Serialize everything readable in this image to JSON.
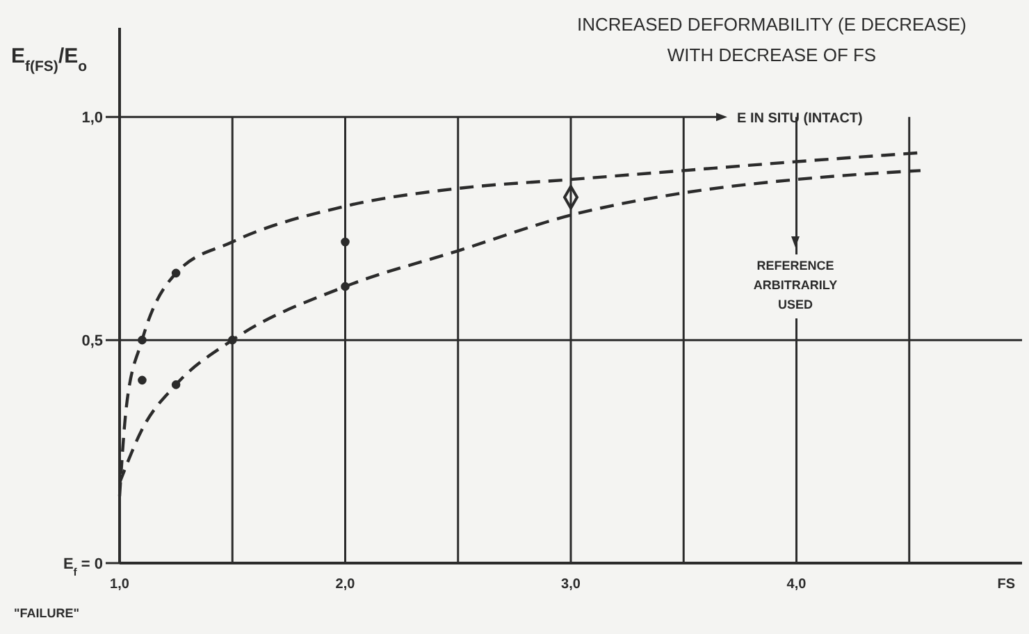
{
  "chart_data": {
    "type": "line",
    "title": "INCREASED DEFORMABILITY (E DECREASE)\nWITH DECREASE OF FS",
    "xlabel": "FS",
    "ylabel": "E$_{f(FS)}$/E$_{o}$",
    "xlim": [
      1.0,
      5.0
    ],
    "ylim": [
      0,
      1.2
    ],
    "xticks": [
      {
        "value": 1.0,
        "label": "1,0"
      },
      {
        "value": 1.5,
        "label": null
      },
      {
        "value": 2.0,
        "label": "2,0"
      },
      {
        "value": 2.5,
        "label": null
      },
      {
        "value": 3.0,
        "label": "3,0"
      },
      {
        "value": 3.5,
        "label": null
      },
      {
        "value": 4.0,
        "label": "4,0"
      },
      {
        "value": 4.5,
        "label": null
      }
    ],
    "yticks": [
      {
        "value": 0,
        "label": "E$_{f}$ = 0"
      },
      {
        "value": 0.5,
        "label": "0,5"
      },
      {
        "value": 1.0,
        "label": "1,0"
      }
    ],
    "grid": true,
    "line_style": "dashed",
    "marker": "none",
    "series": [
      {
        "color": "#2b2b2b",
        "x": [
          1.0,
          1.03,
          1.1,
          1.25,
          1.5,
          2.0,
          2.5,
          3.0,
          3.5,
          4.0,
          4.55
        ],
        "values": [
          0.15,
          0.35,
          0.5,
          0.65,
          0.72,
          0.8,
          0.84,
          0.86,
          0.88,
          0.9,
          0.92
        ]
      },
      {
        "color": "#2b2b2b",
        "x": [
          1.0,
          1.1,
          1.25,
          1.5,
          2.0,
          2.5,
          3.0,
          3.5,
          4.0,
          4.55
        ],
        "values": [
          0.18,
          0.3,
          0.4,
          0.5,
          0.62,
          0.7,
          0.78,
          0.83,
          0.86,
          0.88
        ]
      },
      {
        "type": "scatter",
        "marker": "circle",
        "color": "#2b2b2b",
        "x": [
          1.1,
          1.25,
          1.1,
          1.25,
          1.5,
          2.0,
          2.0
        ],
        "values": [
          0.5,
          0.65,
          0.41,
          0.4,
          0.5,
          0.72,
          0.62
        ]
      },
      {
        "type": "scatter",
        "marker": "diamond",
        "color": "#2b2b2b",
        "x": [
          3.0
        ],
        "values": [
          0.82
        ]
      }
    ],
    "ref_lines": [
      {
        "axis": "y",
        "value": 1.0,
        "label": "E IN SITU (INTACT)"
      }
    ],
    "annotations": [
      "\"FAILURE\"",
      "REFERENCE ARBITRARILY USED"
    ]
  }
}
